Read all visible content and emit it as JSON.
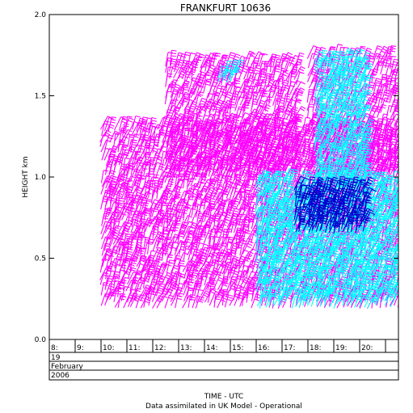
{
  "chart_data": {
    "type": "wind-profile",
    "title": "FRANKFURT 10636",
    "ylabel": "HEIGHT km",
    "xlabel": "TIME - UTC",
    "footer": "Data assimilated in UK Model - Operational",
    "ylim": [
      0.0,
      2.0
    ],
    "yticks": [
      "0.0",
      "0.5",
      "1.0",
      "1.5",
      "2.0"
    ],
    "time_ticks": [
      "8:",
      "9:",
      "10:",
      "11:",
      "12:",
      "13:",
      "14:",
      "15:",
      "16:",
      "17:",
      "18:",
      "19:",
      "20:"
    ],
    "time_range": [
      8.0,
      21.5
    ],
    "date": {
      "day": "19",
      "month": "February",
      "year": "2006"
    },
    "colors": {
      "magenta": "#ff00ff",
      "cyan": "#00ffff",
      "blue": "#0000cc",
      "pink": "#ffc8ff",
      "axis": "#000000"
    },
    "series": [
      {
        "color": "magenta",
        "t_start": 10.0,
        "t_end": 21.6,
        "h_low": 0.2,
        "h_high": 1.3,
        "spacing_h": 0.035
      },
      {
        "color": "magenta",
        "t_start": 12.5,
        "t_end": 17.5,
        "h_low": 1.0,
        "h_high": 1.72,
        "spacing_h": 0.04
      },
      {
        "color": "magenta",
        "t_start": 18.0,
        "t_end": 21.5,
        "h_low": 1.0,
        "h_high": 1.75,
        "spacing_h": 0.045
      },
      {
        "color": "cyan",
        "t_start": 16.0,
        "t_end": 21.5,
        "h_low": 0.2,
        "h_high": 0.98,
        "spacing_h": 0.028
      },
      {
        "color": "cyan",
        "t_start": 18.3,
        "t_end": 20.3,
        "h_low": 0.95,
        "h_high": 1.72,
        "spacing_h": 0.03
      },
      {
        "color": "cyan",
        "t_start": 14.5,
        "t_end": 15.2,
        "h_low": 1.58,
        "h_high": 1.66,
        "spacing_h": 0.03
      },
      {
        "color": "blue",
        "t_start": 17.5,
        "t_end": 20.2,
        "h_low": 0.66,
        "h_high": 0.92,
        "spacing_h": 0.025
      }
    ]
  }
}
